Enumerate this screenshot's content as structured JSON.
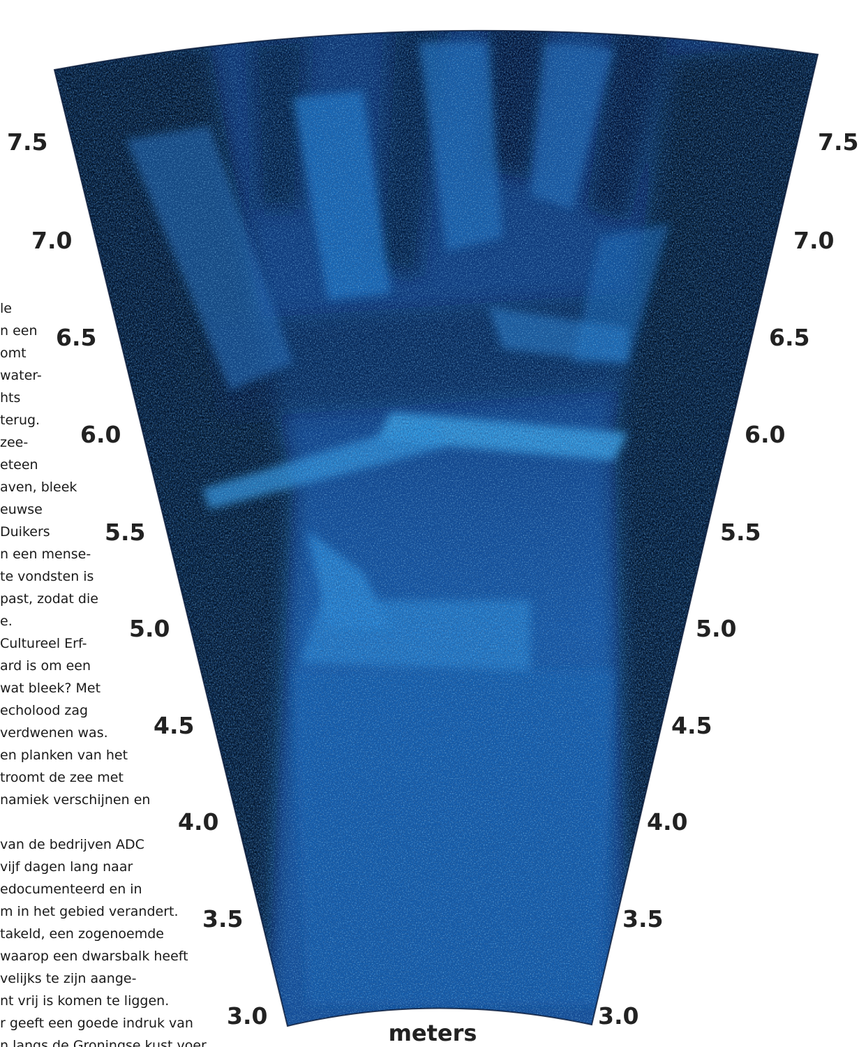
{
  "background_text": {
    "lines": [
      "le",
      "n een",
      "omt",
      "water-",
      "hts",
      "terug.",
      "zee-",
      "eteen",
      "aven, bleek",
      "euwse",
      "Duikers",
      "n een mense-",
      "te vondsten is",
      "past, zodat die",
      "e.",
      "Cultureel Erf-",
      "ard is om een",
      "wat bleek? Met",
      "echolood zag",
      "verdwenen was.",
      "en planken van het",
      "troomt de zee met",
      "namiek verschijnen en",
      "",
      "van de bedrijven ADC",
      "vijf dagen lang naar",
      "edocumenteerd en in",
      "m in het gebied verandert.",
      "takeld, een zogenoemde",
      "waarop een dwarsbalk heeft",
      "velijks te zijn aange-",
      "nt vrij is komen te liggen.",
      "r geeft een goede indruk van",
      "n langs de Groningse kust voer"
    ]
  },
  "sonar": {
    "axis_title": "meters",
    "range_ticks": [
      "7.5",
      "7.0",
      "6.5",
      "6.0",
      "5.5",
      "5.0",
      "4.5",
      "4.0",
      "3.5",
      "3.0"
    ],
    "colors": {
      "deep": "#030b1c",
      "dark": "#0a2a5e",
      "mid": "#1257a8",
      "bright": "#2a90e0",
      "highlight": "#5fc3f5"
    }
  }
}
